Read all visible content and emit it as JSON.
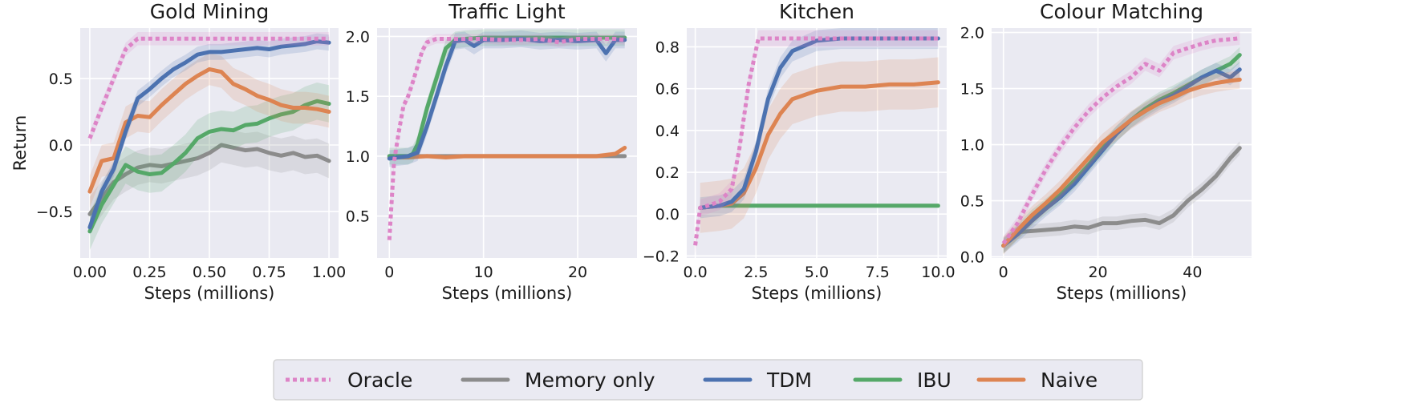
{
  "figure": {
    "legend": {
      "placement": "bottom-center",
      "entries": [
        {
          "name": "Oracle",
          "color": "#dd84c7",
          "style": "dotted"
        },
        {
          "name": "Memory only",
          "color": "#8c8c8c",
          "style": "solid"
        },
        {
          "name": "TDM",
          "color": "#4c72b0",
          "style": "solid"
        },
        {
          "name": "IBU",
          "color": "#55a868",
          "style": "solid"
        },
        {
          "name": "Naive",
          "color": "#dd8452",
          "style": "solid"
        }
      ]
    }
  },
  "chart_data": [
    {
      "type": "line",
      "title": "Gold Mining",
      "xlabel": "Steps (millions)",
      "ylabel": "Return",
      "xlim": [
        -0.04,
        1.04
      ],
      "ylim": [
        -0.85,
        0.88
      ],
      "xticks": [
        0,
        0.25,
        0.5,
        0.75,
        1.0
      ],
      "xtick_labels": [
        "0.00",
        "0.25",
        "0.50",
        "0.75",
        "1.00"
      ],
      "yticks": [
        -0.5,
        0.0,
        0.5
      ],
      "ytick_labels": [
        "−0.5",
        "0.0",
        "0.5"
      ],
      "grid": true,
      "series": [
        {
          "name": "Memory only",
          "x": [
            0,
            0.05,
            0.1,
            0.15,
            0.2,
            0.25,
            0.3,
            0.35,
            0.4,
            0.45,
            0.5,
            0.55,
            0.6,
            0.65,
            0.7,
            0.75,
            0.8,
            0.85,
            0.9,
            0.95,
            1.0
          ],
          "y": [
            -0.52,
            -0.4,
            -0.28,
            -0.22,
            -0.17,
            -0.15,
            -0.16,
            -0.14,
            -0.12,
            -0.1,
            -0.06,
            0.0,
            -0.02,
            -0.04,
            -0.03,
            -0.06,
            -0.08,
            -0.06,
            -0.09,
            -0.08,
            -0.12
          ],
          "band": 0.13
        },
        {
          "name": "IBU",
          "x": [
            0,
            0.05,
            0.1,
            0.15,
            0.2,
            0.25,
            0.3,
            0.35,
            0.4,
            0.45,
            0.5,
            0.55,
            0.6,
            0.65,
            0.7,
            0.75,
            0.8,
            0.85,
            0.9,
            0.95,
            1.0
          ],
          "y": [
            -0.65,
            -0.45,
            -0.3,
            -0.15,
            -0.2,
            -0.22,
            -0.21,
            -0.14,
            -0.06,
            0.05,
            0.1,
            0.12,
            0.11,
            0.15,
            0.16,
            0.2,
            0.23,
            0.25,
            0.3,
            0.33,
            0.31
          ],
          "band": 0.14
        },
        {
          "name": "Naive",
          "x": [
            0,
            0.05,
            0.1,
            0.15,
            0.2,
            0.25,
            0.3,
            0.35,
            0.4,
            0.45,
            0.5,
            0.55,
            0.6,
            0.65,
            0.7,
            0.75,
            0.8,
            0.85,
            0.9,
            0.95,
            1.0
          ],
          "y": [
            -0.35,
            -0.12,
            -0.1,
            0.17,
            0.22,
            0.21,
            0.3,
            0.38,
            0.46,
            0.52,
            0.57,
            0.55,
            0.46,
            0.42,
            0.37,
            0.34,
            0.3,
            0.28,
            0.28,
            0.27,
            0.25
          ],
          "band": 0.12
        },
        {
          "name": "TDM",
          "x": [
            0,
            0.05,
            0.1,
            0.15,
            0.2,
            0.25,
            0.3,
            0.35,
            0.4,
            0.45,
            0.5,
            0.55,
            0.6,
            0.65,
            0.7,
            0.75,
            0.8,
            0.85,
            0.9,
            0.95,
            1.0
          ],
          "y": [
            -0.62,
            -0.35,
            -0.18,
            0.1,
            0.35,
            0.42,
            0.5,
            0.57,
            0.62,
            0.68,
            0.7,
            0.7,
            0.71,
            0.72,
            0.73,
            0.72,
            0.74,
            0.75,
            0.76,
            0.78,
            0.77
          ],
          "band": 0.06
        },
        {
          "name": "Oracle",
          "x": [
            0,
            0.05,
            0.1,
            0.15,
            0.2,
            0.25,
            0.3,
            0.35,
            0.4,
            0.45,
            0.5,
            0.55,
            0.6,
            0.65,
            0.7,
            0.75,
            0.8,
            0.85,
            0.9,
            0.95,
            1.0
          ],
          "y": [
            0.05,
            0.28,
            0.5,
            0.72,
            0.8,
            0.8,
            0.8,
            0.8,
            0.8,
            0.8,
            0.8,
            0.8,
            0.8,
            0.8,
            0.8,
            0.8,
            0.8,
            0.8,
            0.8,
            0.8,
            0.8
          ],
          "band": 0.05
        }
      ]
    },
    {
      "type": "line",
      "title": "Traffic Light",
      "xlabel": "Steps (millions)",
      "ylabel": "",
      "xlim": [
        -1.3,
        26.3
      ],
      "ylim": [
        0.15,
        2.07
      ],
      "xticks": [
        0,
        10,
        20
      ],
      "xtick_labels": [
        "0",
        "10",
        "20"
      ],
      "yticks": [
        0.5,
        1.0,
        1.5,
        2.0
      ],
      "ytick_labels": [
        "0.5",
        "1.0",
        "1.5",
        "2.0"
      ],
      "grid": true,
      "series": [
        {
          "name": "Memory only",
          "x": [
            0,
            2,
            4,
            6,
            8,
            10,
            12,
            14,
            16,
            18,
            20,
            22,
            24,
            25
          ],
          "y": [
            1.0,
            1.0,
            1.0,
            1.0,
            1.0,
            1.0,
            1.0,
            1.0,
            1.0,
            1.0,
            1.0,
            1.0,
            1.0,
            1.0
          ],
          "band": 0.01
        },
        {
          "name": "Naive",
          "x": [
            0,
            2,
            4,
            6,
            8,
            10,
            12,
            14,
            16,
            18,
            20,
            22,
            24,
            25
          ],
          "y": [
            0.99,
            0.99,
            1.0,
            0.99,
            1.0,
            1.0,
            1.0,
            1.0,
            1.0,
            1.0,
            1.0,
            1.0,
            1.02,
            1.07
          ],
          "band": 0.02
        },
        {
          "name": "IBU",
          "x": [
            0,
            1,
            2,
            2.5,
            3,
            4,
            5,
            6,
            7,
            8,
            10,
            12,
            14,
            16,
            18,
            20,
            22,
            24,
            25
          ],
          "y": [
            1.0,
            1.0,
            1.0,
            1.02,
            1.1,
            1.4,
            1.65,
            1.9,
            1.97,
            1.98,
            1.99,
            1.99,
            1.99,
            1.99,
            1.99,
            1.99,
            1.99,
            1.99,
            1.99
          ],
          "band": 0.07
        },
        {
          "name": "TDM",
          "x": [
            0,
            1,
            2,
            3,
            4,
            5,
            6,
            7,
            8,
            9,
            10,
            12,
            14,
            16,
            18,
            20,
            22,
            23,
            24,
            25
          ],
          "y": [
            0.98,
            0.99,
            1.0,
            1.03,
            1.25,
            1.5,
            1.75,
            1.96,
            1.97,
            1.92,
            1.97,
            1.97,
            1.98,
            1.96,
            1.97,
            1.96,
            1.97,
            1.86,
            1.97,
            1.97
          ],
          "band": 0.07
        },
        {
          "name": "Oracle",
          "x": [
            0,
            0.5,
            1,
            1.5,
            2,
            2.5,
            3,
            3.5,
            4,
            5,
            6,
            8,
            10,
            12,
            14,
            16,
            18,
            20,
            22,
            24,
            25
          ],
          "y": [
            0.3,
            0.95,
            1.2,
            1.42,
            1.5,
            1.62,
            1.75,
            1.88,
            1.95,
            1.98,
            1.98,
            1.98,
            1.98,
            1.97,
            1.97,
            1.98,
            1.95,
            1.98,
            1.98,
            1.98,
            1.97
          ],
          "band": 0.04
        }
      ]
    },
    {
      "type": "line",
      "title": "Kitchen",
      "xlabel": "Steps (millions)",
      "ylabel": "",
      "xlim": [
        -0.35,
        10.35
      ],
      "ylim": [
        -0.21,
        0.89
      ],
      "xticks": [
        0,
        2.5,
        5.0,
        7.5,
        10.0
      ],
      "xtick_labels": [
        "0.0",
        "2.5",
        "5.0",
        "7.5",
        "10.0"
      ],
      "yticks": [
        -0.2,
        0.0,
        0.2,
        0.4,
        0.6,
        0.8
      ],
      "ytick_labels": [
        "−0.2",
        "0.0",
        "0.2",
        "0.4",
        "0.6",
        "0.8"
      ],
      "grid": true,
      "series": [
        {
          "name": "IBU",
          "x": [
            0.2,
            1,
            2,
            3,
            4,
            5,
            6,
            7,
            8,
            9,
            10
          ],
          "y": [
            0.03,
            0.04,
            0.04,
            0.04,
            0.04,
            0.04,
            0.04,
            0.04,
            0.04,
            0.04,
            0.04
          ],
          "band": 0.01
        },
        {
          "name": "Naive",
          "x": [
            0.2,
            1,
            1.5,
            2,
            2.5,
            3,
            3.5,
            4,
            5,
            6,
            7,
            8,
            9,
            10
          ],
          "y": [
            0.03,
            0.04,
            0.05,
            0.1,
            0.22,
            0.38,
            0.48,
            0.55,
            0.59,
            0.61,
            0.61,
            0.62,
            0.62,
            0.63
          ],
          "band": 0.12
        },
        {
          "name": "TDM",
          "x": [
            0.2,
            1,
            1.5,
            2,
            2.5,
            3,
            3.5,
            4,
            5,
            6,
            7,
            8,
            9,
            10
          ],
          "y": [
            0.03,
            0.04,
            0.06,
            0.12,
            0.3,
            0.55,
            0.7,
            0.78,
            0.83,
            0.84,
            0.84,
            0.84,
            0.84,
            0.84
          ],
          "band": 0.05
        },
        {
          "name": "Oracle",
          "x": [
            0,
            0.2,
            0.5,
            1,
            1.5,
            1.8,
            2.2,
            2.6,
            3,
            4,
            5,
            6,
            7,
            8,
            9,
            10
          ],
          "y": [
            -0.15,
            0.03,
            0.04,
            0.06,
            0.12,
            0.3,
            0.62,
            0.84,
            0.84,
            0.84,
            0.84,
            0.84,
            0.84,
            0.84,
            0.84,
            0.84
          ],
          "band": 0.04
        }
      ]
    },
    {
      "type": "line",
      "title": "Colour Matching",
      "xlabel": "Steps (millions)",
      "ylabel": "",
      "xlim": [
        -2.5,
        52.5
      ],
      "ylim": [
        -0.01,
        2.04
      ],
      "xticks": [
        0,
        20,
        40
      ],
      "xtick_labels": [
        "0",
        "20",
        "40"
      ],
      "yticks": [
        0.0,
        0.5,
        1.0,
        1.5,
        2.0
      ],
      "ytick_labels": [
        "0.0",
        "0.5",
        "1.0",
        "1.5",
        "2.0"
      ],
      "grid": true,
      "series": [
        {
          "name": "Memory only",
          "x": [
            0,
            3,
            6,
            9,
            12,
            15,
            18,
            21,
            24,
            27,
            30,
            33,
            36,
            39,
            42,
            45,
            48,
            50
          ],
          "y": [
            0.1,
            0.22,
            0.23,
            0.24,
            0.25,
            0.27,
            0.26,
            0.3,
            0.3,
            0.32,
            0.33,
            0.3,
            0.37,
            0.5,
            0.6,
            0.72,
            0.88,
            0.97
          ],
          "band": 0.06
        },
        {
          "name": "IBU",
          "x": [
            0,
            3,
            6,
            9,
            12,
            15,
            18,
            21,
            24,
            27,
            30,
            33,
            36,
            39,
            42,
            45,
            48,
            50
          ],
          "y": [
            0.1,
            0.22,
            0.35,
            0.45,
            0.55,
            0.68,
            0.82,
            0.97,
            1.1,
            1.22,
            1.32,
            1.4,
            1.46,
            1.53,
            1.6,
            1.66,
            1.72,
            1.8
          ],
          "band": 0.07
        },
        {
          "name": "TDM",
          "x": [
            0,
            3,
            6,
            9,
            12,
            15,
            18,
            21,
            24,
            27,
            30,
            33,
            36,
            39,
            42,
            45,
            48,
            50
          ],
          "y": [
            0.1,
            0.2,
            0.32,
            0.43,
            0.53,
            0.65,
            0.8,
            0.95,
            1.1,
            1.22,
            1.3,
            1.38,
            1.44,
            1.52,
            1.6,
            1.66,
            1.6,
            1.67
          ],
          "band": 0.07
        },
        {
          "name": "Naive",
          "x": [
            0,
            3,
            6,
            9,
            12,
            15,
            18,
            21,
            24,
            27,
            30,
            33,
            36,
            39,
            42,
            45,
            48,
            50
          ],
          "y": [
            0.1,
            0.24,
            0.37,
            0.48,
            0.6,
            0.74,
            0.88,
            1.02,
            1.12,
            1.22,
            1.3,
            1.37,
            1.42,
            1.48,
            1.52,
            1.55,
            1.57,
            1.58
          ],
          "band": 0.08
        },
        {
          "name": "Oracle",
          "x": [
            0,
            3,
            6,
            9,
            12,
            15,
            18,
            21,
            24,
            27,
            30,
            33,
            36,
            39,
            42,
            45,
            48,
            50
          ],
          "y": [
            0.12,
            0.3,
            0.55,
            0.78,
            0.98,
            1.15,
            1.3,
            1.42,
            1.52,
            1.6,
            1.72,
            1.66,
            1.82,
            1.86,
            1.9,
            1.93,
            1.94,
            1.95
          ],
          "band": 0.06
        }
      ]
    }
  ]
}
